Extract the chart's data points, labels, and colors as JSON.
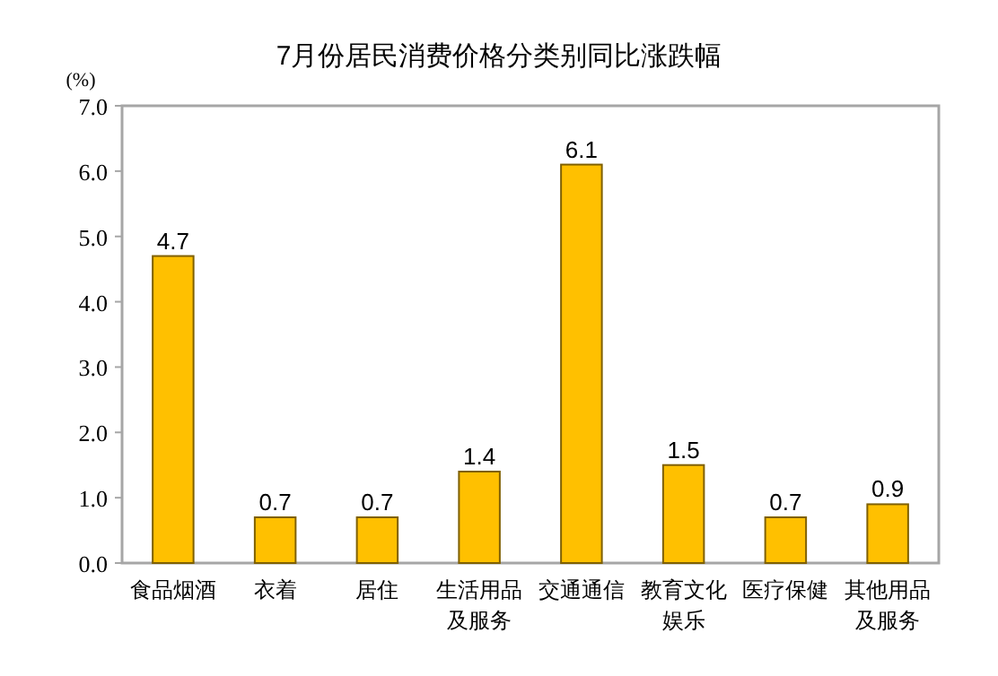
{
  "chart_data": {
    "type": "bar",
    "title": "7月份居民消费价格分类别同比涨跌幅",
    "ylabel": "(%)",
    "categories": [
      "食品烟酒",
      "衣着",
      "居住",
      "生活用品及服务",
      "交通通信",
      "教育文化娱乐",
      "医疗保健",
      "其他用品及服务"
    ],
    "values": [
      4.7,
      0.7,
      0.7,
      1.4,
      6.1,
      1.5,
      0.7,
      0.9
    ],
    "color": "#ffc000",
    "ylim": [
      0,
      7
    ],
    "yticks": [
      {
        "value": 0,
        "label": "0.0"
      },
      {
        "value": 1,
        "label": "1.0"
      },
      {
        "value": 2,
        "label": "2.0"
      },
      {
        "value": 3,
        "label": "3.0"
      },
      {
        "value": 4,
        "label": "4.0"
      },
      {
        "value": 5,
        "label": "5.0"
      },
      {
        "value": 6,
        "label": "6.0"
      },
      {
        "value": 7,
        "label": "7.0"
      }
    ],
    "data_labels": true
  }
}
